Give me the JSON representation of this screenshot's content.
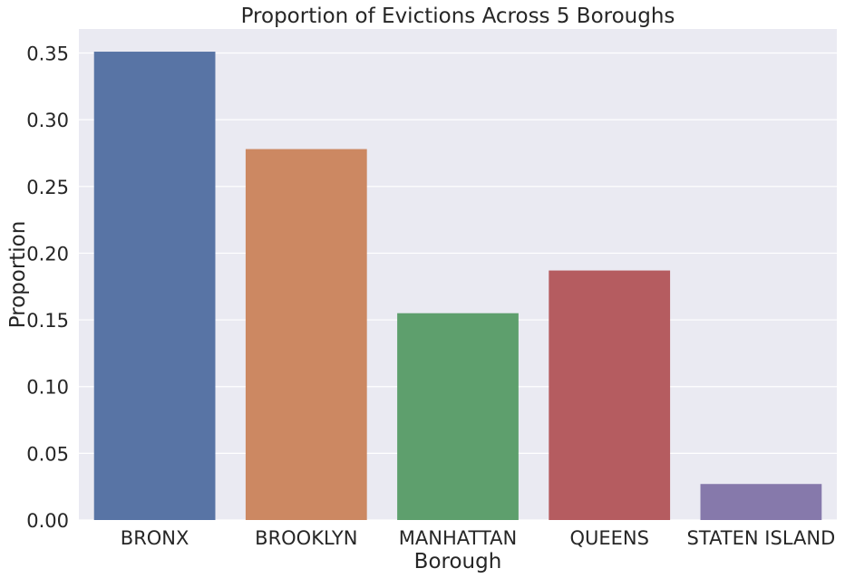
{
  "chart_data": {
    "type": "bar",
    "title": "Proportion of Evictions Across 5 Boroughs",
    "xlabel": "Borough",
    "ylabel": "Proportion",
    "categories": [
      "BRONX",
      "BROOKLYN",
      "MANHATTAN",
      "QUEENS",
      "STATEN ISLAND"
    ],
    "values": [
      0.351,
      0.278,
      0.155,
      0.187,
      0.027
    ],
    "ylim": [
      0,
      0.368
    ],
    "yticks": [
      "0.00",
      "0.05",
      "0.10",
      "0.15",
      "0.20",
      "0.25",
      "0.30",
      "0.35"
    ],
    "grid": true,
    "colors": [
      "#5874a5",
      "#cc8862",
      "#5e9f6d",
      "#b55c60",
      "#8679ab"
    ],
    "background": "#eaeaf2"
  }
}
